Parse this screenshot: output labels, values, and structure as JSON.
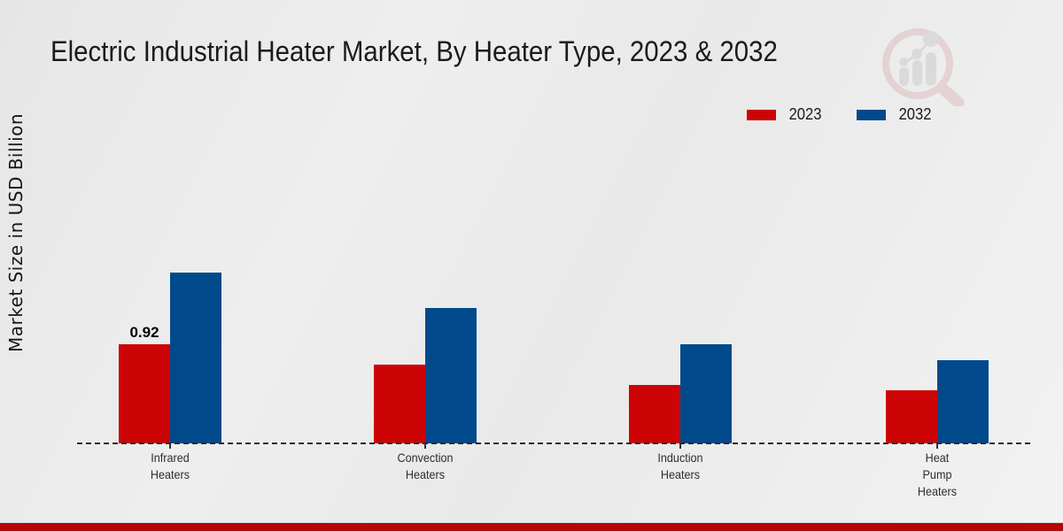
{
  "page": {
    "title": "Electric Industrial Heater Market, By Heater Type, 2023 & 2032",
    "y_axis_label": "Market Size in USD Billion"
  },
  "legend": [
    {
      "label": "2023",
      "color": "#cc0405"
    },
    {
      "label": "2032",
      "color": "#004a8b"
    }
  ],
  "colors": {
    "bar_2023": "#cc0405",
    "bar_2032": "#004a8b",
    "footer_strip": "#b40808",
    "axis_line": "#2b2b2b",
    "background": "#ececec"
  },
  "watermark": {
    "name": "market-research-magnifier-logo"
  },
  "chart_data": {
    "type": "bar",
    "title": "Electric Industrial Heater Market, By Heater Type, 2023 & 2032",
    "xlabel": "",
    "ylabel": "Market Size in USD Billion",
    "categories": [
      "Infrared\nHeaters",
      "Convection\nHeaters",
      "Induction\nHeaters",
      "Heat\nPump\nHeaters"
    ],
    "series": [
      {
        "name": "2023",
        "color": "#cc0405",
        "values": [
          0.92,
          0.73,
          0.54,
          0.49
        ],
        "labels": [
          "0.92",
          null,
          null,
          null
        ]
      },
      {
        "name": "2032",
        "color": "#004a8b",
        "values": [
          1.58,
          1.25,
          0.92,
          0.77
        ],
        "labels": [
          null,
          null,
          null,
          null
        ]
      }
    ],
    "ylim": [
      0,
      1.7
    ],
    "grid": false,
    "y_axis_ticks_visible": false,
    "baseline_style": "dashed",
    "legend_position": "upper-right"
  }
}
